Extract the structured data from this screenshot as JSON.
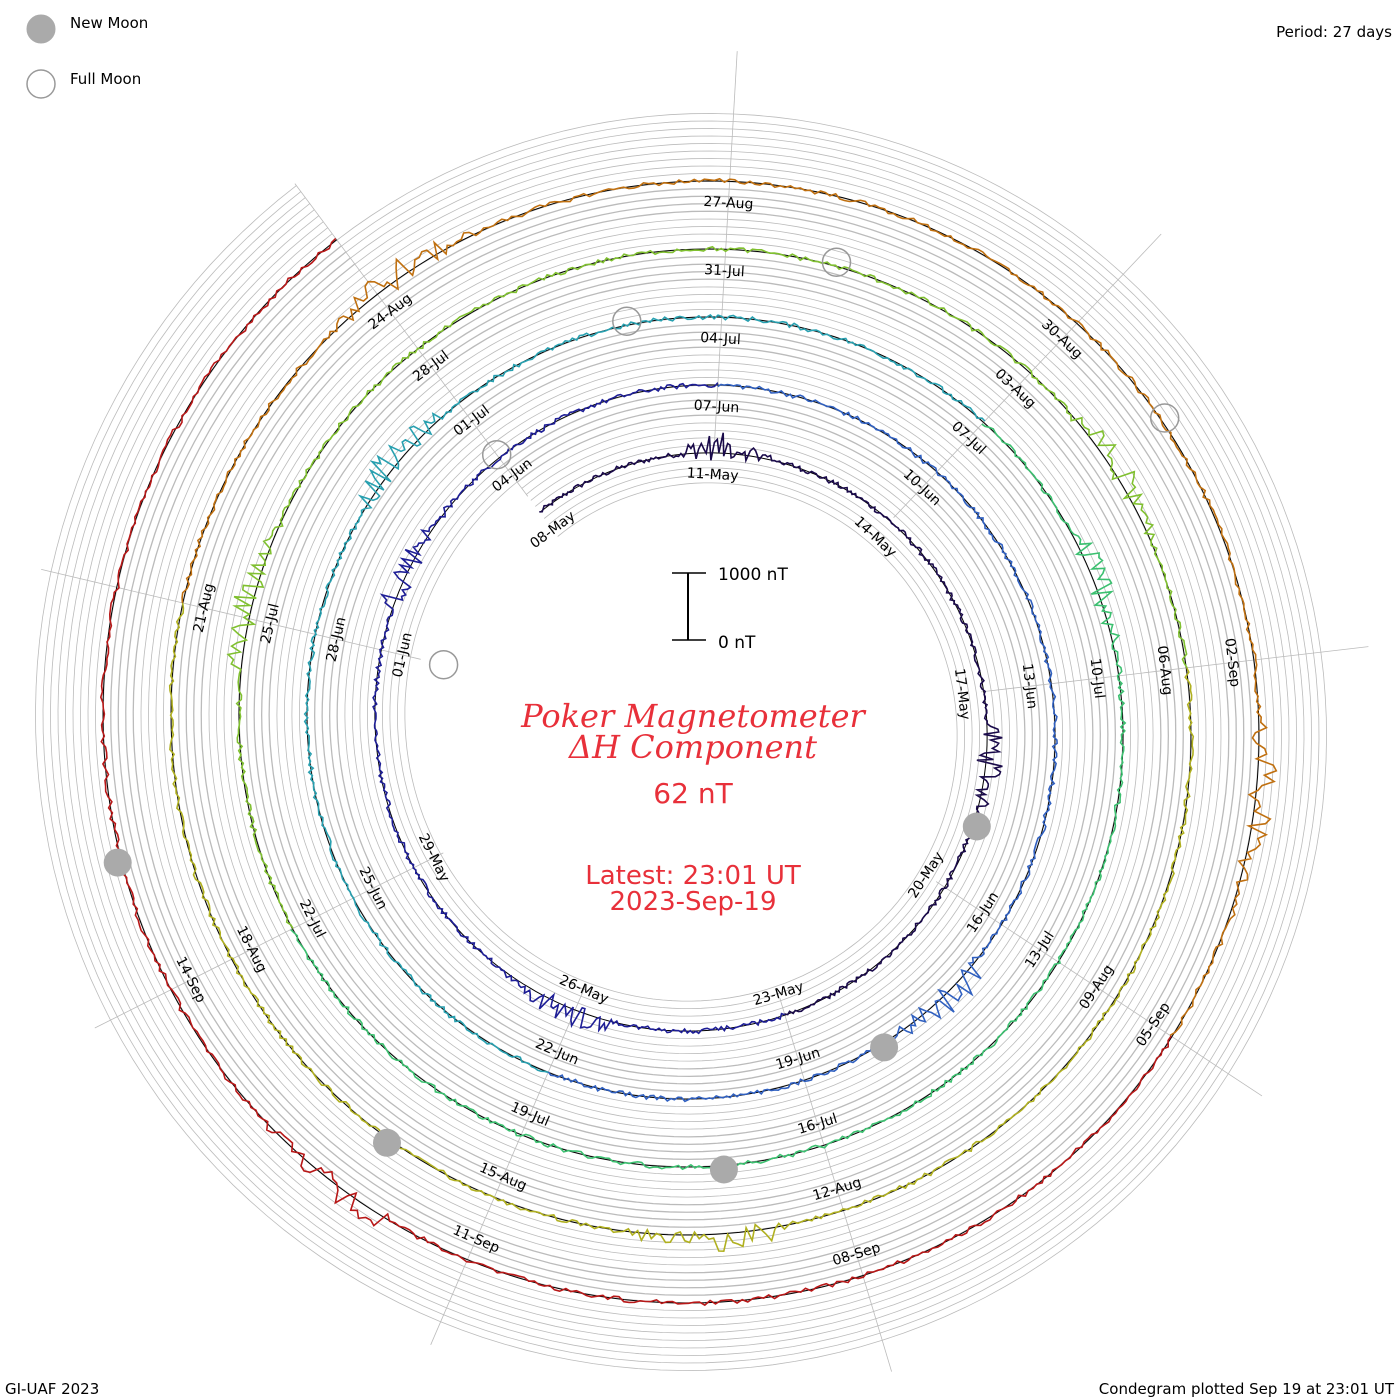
{
  "legend": {
    "new_moon": "New Moon",
    "full_moon": "Full Moon"
  },
  "period_label": "Period: 27 days",
  "footer": {
    "credit": "GI-UAF 2023",
    "plotted": "Condegram plotted Sep 19 at 23:01 UT"
  },
  "colors": {
    "title": "#e8303a",
    "grid": "#bbbbbb",
    "moon_fill": "#aaaaaa",
    "moon_ring": "#999999"
  },
  "chart_data": {
    "type": "line",
    "form": "spiral condegram",
    "title": "Poker Magnetometer",
    "subtitle": "ΔH Component",
    "current_value": "62 nT",
    "latest_time": "Latest: 23:01 UT",
    "latest_date": "2023-Sep-19",
    "scale_bar": {
      "top_label": "1000 nT",
      "bottom_label": "0 nT"
    },
    "period_days": 27,
    "date_labels": [
      "08-May",
      "11-May",
      "14-May",
      "17-May",
      "20-May",
      "23-May",
      "26-May",
      "29-May",
      "01-Jun",
      "04-Jun",
      "07-Jun",
      "10-Jun",
      "13-Jun",
      "16-Jun",
      "19-Jun",
      "22-Jun",
      "25-Jun",
      "28-Jun",
      "01-Jul",
      "04-Jul",
      "07-Jul",
      "10-Jul",
      "13-Jul",
      "16-Jul",
      "19-Jul",
      "22-Jul",
      "25-Jul",
      "28-Jul",
      "31-Jul",
      "03-Aug",
      "06-Aug",
      "09-Aug",
      "12-Aug",
      "15-Aug",
      "18-Aug",
      "21-Aug",
      "24-Aug",
      "27-Aug",
      "30-Aug",
      "02-Sep",
      "05-Sep",
      "08-Sep",
      "11-Sep",
      "14-Sep"
    ],
    "series_colors": [
      "#1a0a4a",
      "#1e1e96",
      "#3060c0",
      "#28a0b0",
      "#3cc070",
      "#80c030",
      "#b0b020",
      "#c07010",
      "#b81818"
    ],
    "new_moon_dates": [
      "2023-05-19",
      "2023-06-18",
      "2023-07-17",
      "2023-08-16",
      "2023-09-15"
    ],
    "full_moon_dates": [
      "2023-05-05",
      "2023-06-04",
      "2023-07-03",
      "2023-08-01",
      "2023-08-31"
    ]
  }
}
